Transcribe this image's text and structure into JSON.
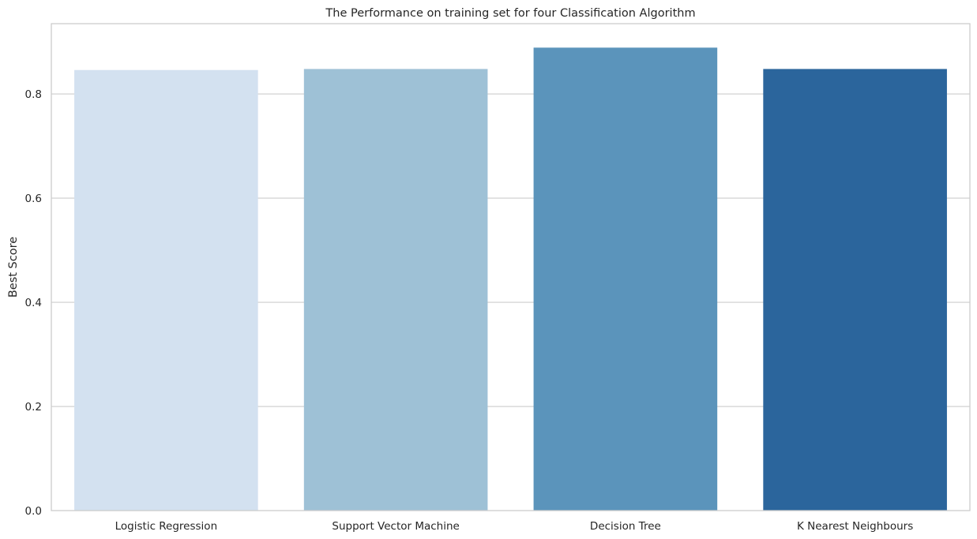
{
  "chart_data": {
    "type": "bar",
    "title": "The Performance on training set for four Classification Algorithm",
    "xlabel": "",
    "ylabel": "Best Score",
    "categories": [
      "Logistic Regression",
      "Support Vector Machine",
      "Decision Tree",
      "K Nearest Neighbours"
    ],
    "values": [
      0.846,
      0.848,
      0.889,
      0.848
    ],
    "colors": [
      "#d3e1f0",
      "#9ec1d6",
      "#5b94bb",
      "#2b659c"
    ],
    "ylim": [
      0,
      0.935
    ],
    "yticks": [
      0.0,
      0.2,
      0.4,
      0.6,
      0.8
    ],
    "ytick_labels": [
      "0.0",
      "0.2",
      "0.4",
      "0.6",
      "0.8"
    ],
    "grid": "y",
    "legend": "none",
    "grid_color": "#cccccc",
    "text_color": "#262626"
  }
}
